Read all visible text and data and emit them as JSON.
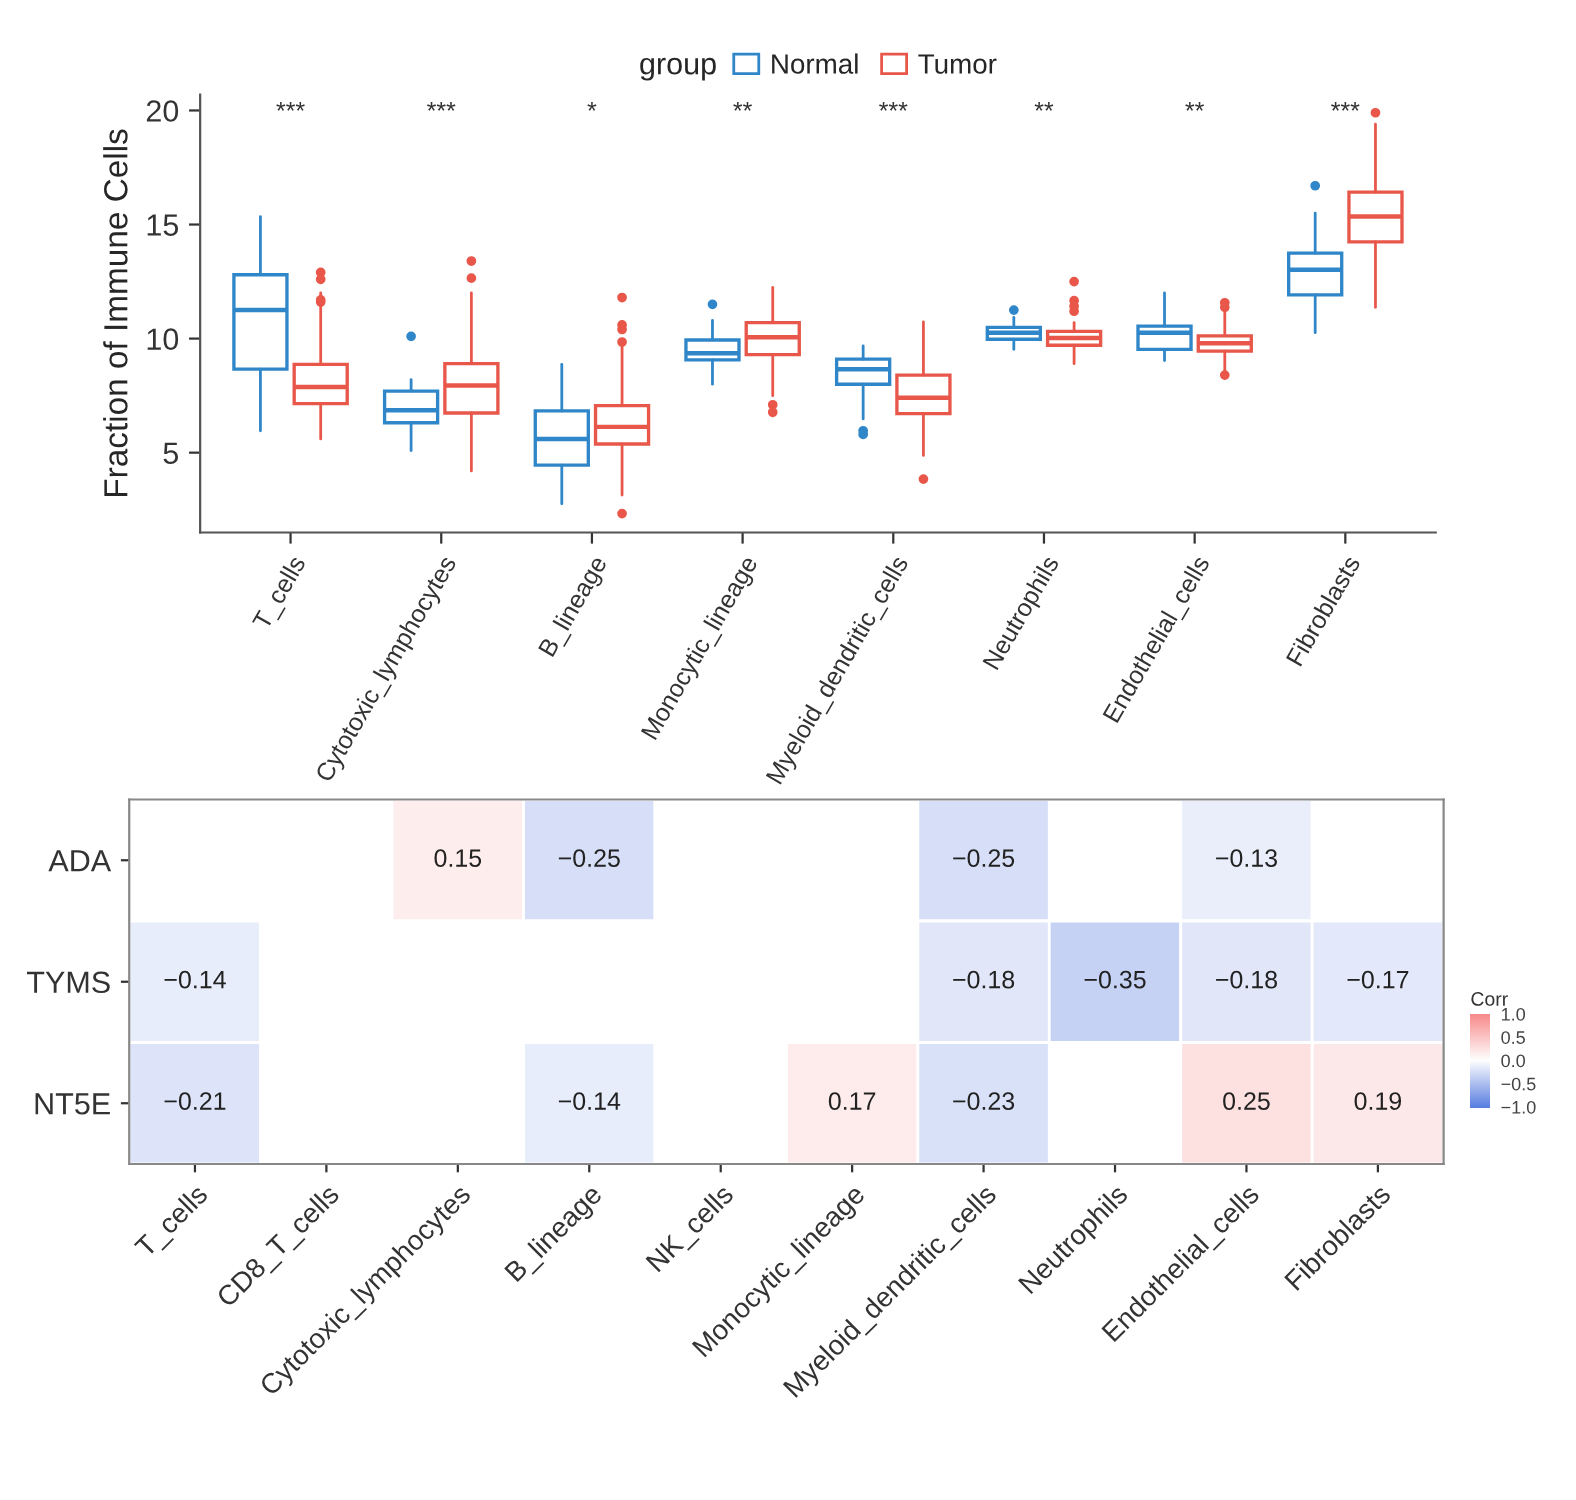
{
  "chart_data": [
    {
      "type": "box",
      "ylabel": "Fraction of Immune Cells",
      "legend": "top",
      "legend_title": "group",
      "categories": [
        "T_cells",
        "Cytotoxic_lymphocytes",
        "B_lineage",
        "Monocytic_lineage",
        "Myeloid_dendritic_cells",
        "Neutrophils",
        "Endothelial_cells",
        "Fibroblasts"
      ],
      "ylim": [
        1.5,
        20.7
      ],
      "yticks": [
        5,
        10,
        15,
        20
      ],
      "grid": false,
      "series": [
        {
          "name": "Normal",
          "color": "#2f86c8",
          "boxes": [
            {
              "low": 5.96,
              "q1": 8.66,
              "median": 11.25,
              "q3": 12.8,
              "high": 15.35
            },
            {
              "low": 5.09,
              "q1": 6.31,
              "median": 6.86,
              "q3": 7.7,
              "high": 8.2,
              "outliers": [
                10.1
              ]
            },
            {
              "low": 2.76,
              "q1": 4.45,
              "median": 5.6,
              "q3": 6.83,
              "high": 8.87
            },
            {
              "low": 8.0,
              "q1": 9.07,
              "median": 9.36,
              "q3": 9.94,
              "high": 10.8,
              "outliers": [
                11.5
              ]
            },
            {
              "low": 6.48,
              "q1": 8.0,
              "median": 8.66,
              "q3": 9.1,
              "high": 9.68,
              "outliers": [
                5.96,
                5.8
              ]
            },
            {
              "low": 9.53,
              "q1": 9.97,
              "median": 10.26,
              "q3": 10.49,
              "high": 10.93,
              "outliers": [
                11.25
              ]
            },
            {
              "low": 9.04,
              "q1": 9.53,
              "median": 10.26,
              "q3": 10.55,
              "high": 12.0
            },
            {
              "low": 10.26,
              "q1": 11.92,
              "median": 13.02,
              "q3": 13.75,
              "high": 15.5,
              "outliers": [
                16.7
              ]
            }
          ]
        },
        {
          "name": "Tumor",
          "color": "#e8574a",
          "boxes": [
            {
              "low": 5.6,
              "q1": 7.15,
              "median": 7.88,
              "q3": 8.87,
              "high": 12.0,
              "outliers": [
                12.9,
                12.6,
                11.7,
                11.6
              ]
            },
            {
              "low": 4.2,
              "q1": 6.74,
              "median": 7.94,
              "q3": 8.9,
              "high": 12.0,
              "outliers": [
                13.4,
                12.65
              ]
            },
            {
              "low": 3.14,
              "q1": 5.38,
              "median": 6.13,
              "q3": 7.06,
              "high": 9.7,
              "outliers": [
                11.8,
                10.6,
                10.4,
                9.85,
                2.33
              ]
            },
            {
              "low": 7.5,
              "q1": 9.3,
              "median": 10.06,
              "q3": 10.7,
              "high": 12.24,
              "outliers": [
                7.1,
                6.77
              ]
            },
            {
              "low": 4.88,
              "q1": 6.71,
              "median": 7.41,
              "q3": 8.4,
              "high": 10.73,
              "outliers": [
                3.84
              ]
            },
            {
              "low": 8.9,
              "q1": 9.71,
              "median": 10.03,
              "q3": 10.32,
              "high": 10.7,
              "outliers": [
                12.5,
                11.66,
                11.42,
                11.2
              ]
            },
            {
              "low": 8.52,
              "q1": 9.45,
              "median": 9.8,
              "q3": 10.12,
              "high": 11.13,
              "outliers": [
                11.57,
                11.37,
                8.4
              ]
            },
            {
              "low": 11.37,
              "q1": 14.24,
              "median": 15.35,
              "q3": 16.42,
              "high": 19.4,
              "outliers": [
                19.9
              ]
            }
          ]
        }
      ],
      "annotations": [
        "***",
        "***",
        "*",
        "**",
        "***",
        "**",
        "**",
        "***"
      ]
    },
    {
      "type": "heatmap",
      "clabel": "Corr",
      "categories": [
        "T_cells",
        "CD8_T_cells",
        "Cytotoxic_lymphocytes",
        "B_lineage",
        "NK_cells",
        "Monocytic_lineage",
        "Myeloid_dendritic_cells",
        "Neutrophils",
        "Endothelial_cells",
        "Fibroblasts"
      ],
      "y_categories": [
        "ADA",
        "TYMS",
        "NT5E"
      ],
      "cells": [
        [
          null,
          null,
          0.15,
          -0.25,
          null,
          null,
          -0.25,
          null,
          -0.13,
          null
        ],
        [
          -0.14,
          null,
          null,
          null,
          null,
          null,
          -0.18,
          -0.35,
          -0.18,
          -0.17
        ],
        [
          -0.21,
          null,
          null,
          -0.14,
          null,
          0.17,
          -0.23,
          null,
          0.25,
          0.19
        ]
      ],
      "data_labels": true,
      "clim": [
        -1.0,
        1.0
      ],
      "cticks": [
        {
          "value": 1.0,
          "label": "1.0"
        },
        {
          "value": 0.5,
          "label": "0.5"
        },
        {
          "value": 0.0,
          "label": "0.0"
        },
        {
          "value": -0.5,
          "label": "−0.5"
        },
        {
          "value": -1.0,
          "label": "−1.0"
        }
      ]
    }
  ]
}
